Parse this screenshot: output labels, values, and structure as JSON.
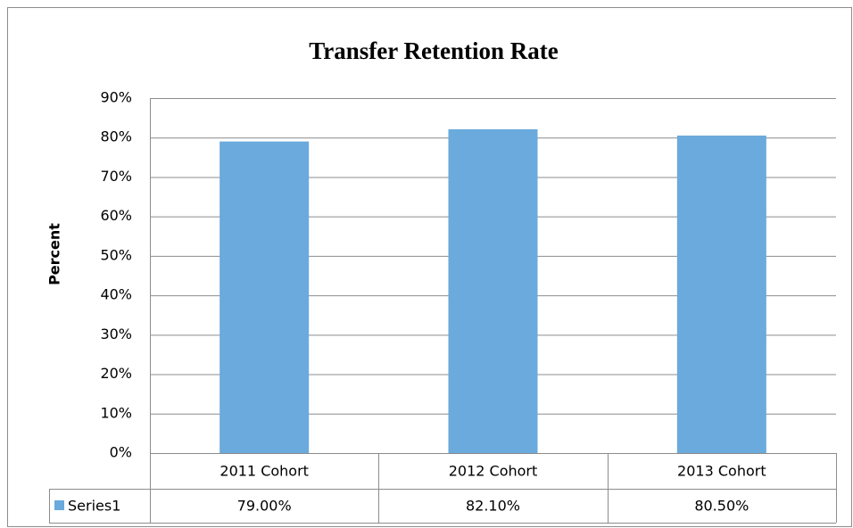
{
  "chart_data": {
    "type": "bar",
    "title": "Transfer Retention Rate",
    "y_label": "Percent",
    "categories": [
      "2011 Cohort",
      "2012 Cohort",
      "2013 Cohort"
    ],
    "series": [
      {
        "name": "Series1",
        "color": "#6aaadc",
        "values": [
          79,
          82.1,
          80.5
        ],
        "value_labels": [
          "79.00%",
          "82.10%",
          "80.50%"
        ]
      }
    ],
    "ylim": [
      0,
      90
    ],
    "yticks": [
      {
        "value": 0,
        "label": "0%"
      },
      {
        "value": 10,
        "label": "10%"
      },
      {
        "value": 20,
        "label": "20%"
      },
      {
        "value": 30,
        "label": "30%"
      },
      {
        "value": 40,
        "label": "40%"
      },
      {
        "value": 50,
        "label": "50%"
      },
      {
        "value": 60,
        "label": "60%"
      },
      {
        "value": 70,
        "label": "70%"
      },
      {
        "value": 80,
        "label": "80%"
      },
      {
        "value": 90,
        "label": "90%"
      }
    ],
    "grid": true,
    "data_table": true
  }
}
